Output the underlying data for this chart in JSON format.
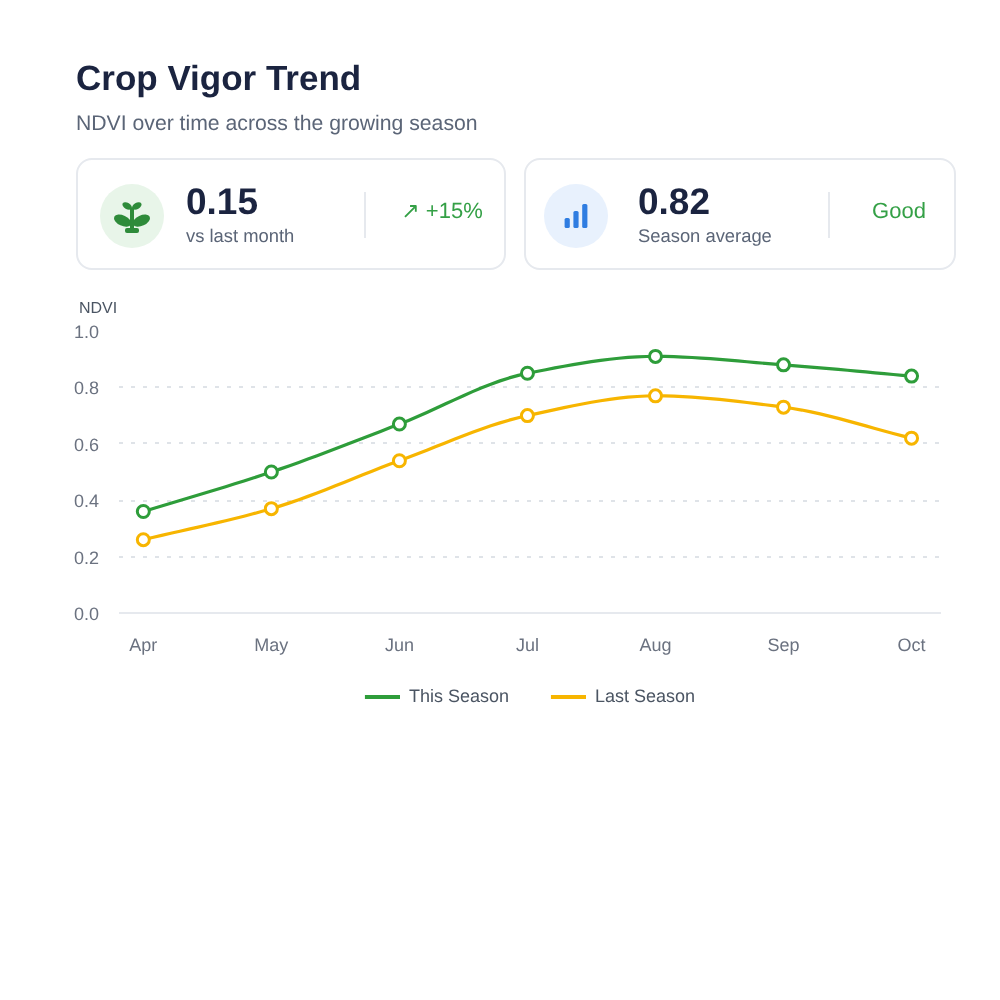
{
  "chart_data": [
    {
      "type": "other",
      "title": "0.15",
      "subtitle": "vs last month",
      "annotations": [
        "↗ +15%"
      ]
    },
    {
      "type": "other",
      "title": "0.82",
      "subtitle": "Season average",
      "annotations": [
        "Good"
      ]
    },
    {
      "type": "line",
      "title": "Crop Vigor Trend",
      "subtitle": "NDVI over time across the growing season",
      "ylabel": "NDVI",
      "categories": [
        "Apr",
        "May",
        "Jun",
        "Jul",
        "Aug",
        "Sep",
        "Oct"
      ],
      "series": [
        {
          "name": "This Season",
          "color": "#2e9d3a",
          "values": [
            0.36,
            0.5,
            0.67,
            0.85,
            0.91,
            0.88,
            0.84
          ]
        },
        {
          "name": "Last Season",
          "color": "#f7b500",
          "values": [
            0.26,
            0.37,
            0.54,
            0.7,
            0.77,
            0.73,
            0.62
          ]
        }
      ],
      "ylim": [
        0,
        1
      ],
      "yticks": [
        {
          "value": 0,
          "label": "0.0"
        },
        0.2,
        0.4,
        0.6,
        0.8,
        {
          "value": 1,
          "label": "1.0"
        }
      ],
      "grid": "y",
      "legend": "bottom",
      "marker": "circle",
      "line_style": "solid"
    }
  ]
}
